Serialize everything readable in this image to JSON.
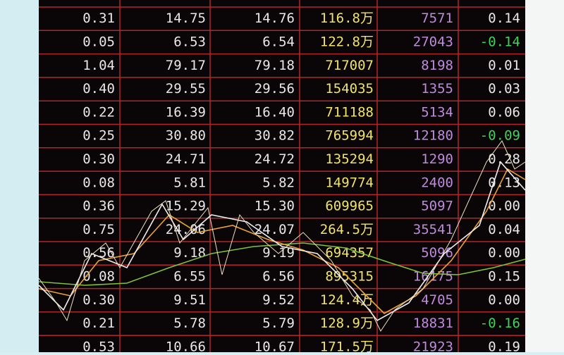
{
  "table": {
    "rows": [
      [
        "0.31",
        "14.75",
        "14.76",
        "116.8万",
        "7571",
        "0.14"
      ],
      [
        "0.05",
        "6.53",
        "6.54",
        "122.8万",
        "27043",
        "-0.14"
      ],
      [
        "1.04",
        "79.17",
        "79.18",
        "717007",
        "8198",
        "0.01"
      ],
      [
        "0.40",
        "29.55",
        "29.56",
        "154035",
        "1355",
        "0.03"
      ],
      [
        "0.22",
        "16.39",
        "16.40",
        "711188",
        "5134",
        "0.06"
      ],
      [
        "0.25",
        "30.80",
        "30.82",
        "765994",
        "12180",
        "-0.09"
      ],
      [
        "0.30",
        "24.71",
        "24.72",
        "135294",
        "1290",
        "0.28"
      ],
      [
        "0.08",
        "5.81",
        "5.82",
        "149774",
        "2400",
        "0.13"
      ],
      [
        "0.36",
        "15.29",
        "15.30",
        "609965",
        "5097",
        "0.00"
      ],
      [
        "0.75",
        "24.06",
        "24.07",
        "264.5万",
        "35541",
        "0.04"
      ],
      [
        "0.56",
        "9.18",
        "9.19",
        "694357",
        "5096",
        "0.00"
      ],
      [
        "0.08",
        "6.55",
        "6.56",
        "895315",
        "16175",
        "0.15"
      ],
      [
        "0.30",
        "9.51",
        "9.52",
        "124.4万",
        "4705",
        "0.00"
      ],
      [
        "0.21",
        "5.78",
        "5.79",
        "128.9万",
        "18831",
        "-0.16"
      ],
      [
        "0.53",
        "10.66",
        "10.67",
        "171.5万",
        "21923",
        "0.19"
      ]
    ]
  }
}
